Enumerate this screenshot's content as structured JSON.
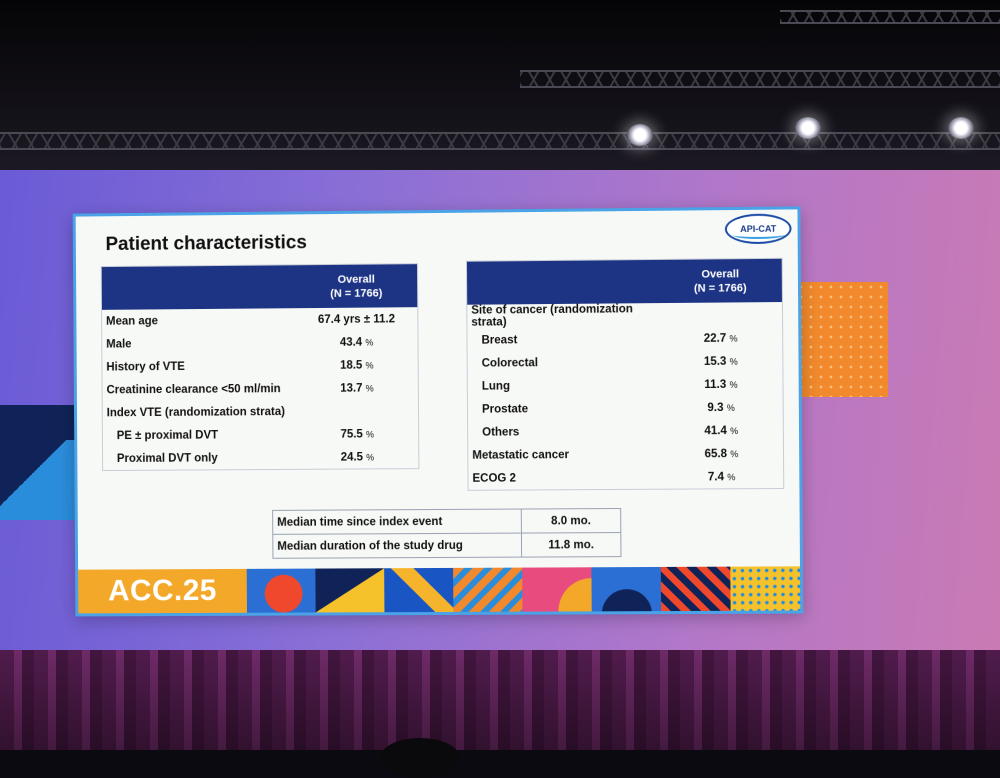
{
  "slide": {
    "title": "Patient characteristics",
    "logo": "API-CAT",
    "left_table": {
      "header": [
        "Overall",
        "(N = 1766)"
      ],
      "rows": [
        {
          "label": "Mean age",
          "value": "67.4 yrs ± 11.2",
          "unit": ""
        },
        {
          "label": "Male",
          "value": "43.4",
          "unit": "%"
        },
        {
          "label": "History of VTE",
          "value": "18.5",
          "unit": "%"
        },
        {
          "label": "Creatinine clearance <50 ml/min",
          "value": "13.7",
          "unit": "%"
        },
        {
          "label": "Index VTE (randomization strata)",
          "value": "",
          "unit": ""
        },
        {
          "label": "PE ± proximal DVT",
          "value": "75.5",
          "unit": "%"
        },
        {
          "label": "Proximal DVT only",
          "value": "24.5",
          "unit": "%"
        }
      ]
    },
    "right_table": {
      "header": [
        "Overall",
        "(N = 1766)"
      ],
      "rows": [
        {
          "label": "Site of cancer (randomization strata)",
          "value": "",
          "unit": ""
        },
        {
          "label": "Breast",
          "value": "22.7",
          "unit": "%"
        },
        {
          "label": "Colorectal",
          "value": "15.3",
          "unit": "%"
        },
        {
          "label": "Lung",
          "value": "11.3",
          "unit": "%"
        },
        {
          "label": "Prostate",
          "value": "9.3",
          "unit": "%"
        },
        {
          "label": "Others",
          "value": "41.4",
          "unit": "%"
        },
        {
          "label": "Metastatic cancer",
          "value": "65.8",
          "unit": "%"
        },
        {
          "label": "ECOG 2",
          "value": "7.4",
          "unit": "%"
        }
      ]
    },
    "bottom_table": {
      "rows": [
        {
          "label": "Median time since index event",
          "value": "8.0 mo."
        },
        {
          "label": "Median duration of the study drug",
          "value": "11.8 mo."
        }
      ]
    },
    "banner": {
      "text": "ACC.25"
    }
  },
  "colors": {
    "header_navy": "#1d3485",
    "slide_border": "#4aa3e6",
    "banner_orange": "#f4a82a",
    "wall_purple": "#8a6fd6"
  }
}
